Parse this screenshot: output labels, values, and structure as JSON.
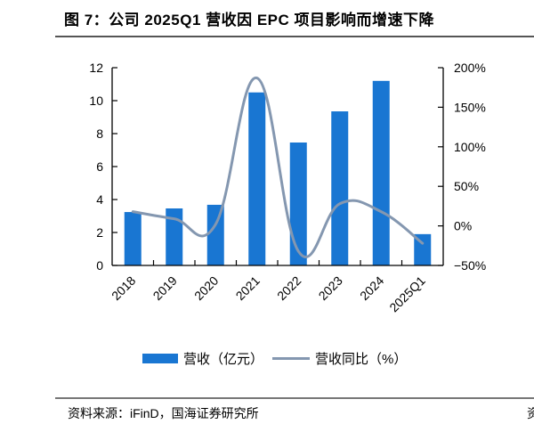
{
  "header": {
    "title": "图 7：公司 2025Q1 营收因 EPC 项目影响而增速下降",
    "title_cut": "图"
  },
  "legend": {
    "bar_label": "营收（亿元）",
    "line_label": "营收同比（%）"
  },
  "footer": {
    "source": "资料来源：iFinD，国海证券研究所",
    "source_cut": "资"
  },
  "colors": {
    "bar": "#1976D2",
    "line": "#8497B0",
    "axis": "#000000"
  },
  "chart_data": {
    "type": "bar+line",
    "title": "图 7：公司 2025Q1 营收因 EPC 项目影响而增速下降",
    "categories": [
      "2018",
      "2019",
      "2020",
      "2021",
      "2022",
      "2023",
      "2024",
      "2025Q1"
    ],
    "series": [
      {
        "name": "营收（亿元）",
        "type": "bar",
        "axis": "left",
        "values": [
          3.24,
          3.46,
          3.68,
          10.5,
          7.46,
          9.35,
          11.2,
          1.9
        ]
      },
      {
        "name": "营收同比（%）",
        "type": "line",
        "axis": "right",
        "smooth": true,
        "values": [
          18,
          9,
          2,
          187,
          -32,
          28,
          18,
          -22
        ]
      }
    ],
    "left_axis": {
      "ylim": [
        0,
        12
      ],
      "ticks": [
        "0",
        "2",
        "4",
        "6",
        "8",
        "10",
        "12"
      ]
    },
    "right_axis": {
      "ylim": [
        -50,
        200
      ],
      "ticks": [
        "-50%",
        "0%",
        "50%",
        "100%",
        "150%",
        "200%"
      ]
    },
    "xlabel": "",
    "ylabel": "",
    "grid": false,
    "legend_position": "bottom"
  }
}
